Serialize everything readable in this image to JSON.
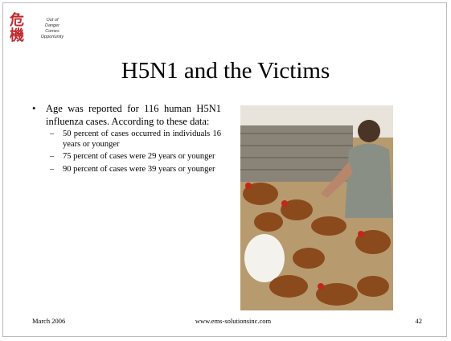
{
  "logo": {
    "characters": [
      "危",
      "機"
    ],
    "caption": [
      "Out of",
      "Danger",
      "Comes",
      "Opportunity"
    ]
  },
  "title": "H5N1 and the Victims",
  "bullets": [
    {
      "text": "Age was reported for 116 human H5N1 influenza cases. According to these data:",
      "sub": [
        "50 percent of cases occurred in individuals 16 years or younger",
        "75 percent of cases were 29 years or younger",
        "90 percent of cases were 39 years or younger"
      ]
    }
  ],
  "footer": {
    "date": "March 2006",
    "url": "www.ems-solutionsinc.com",
    "page": 42
  }
}
